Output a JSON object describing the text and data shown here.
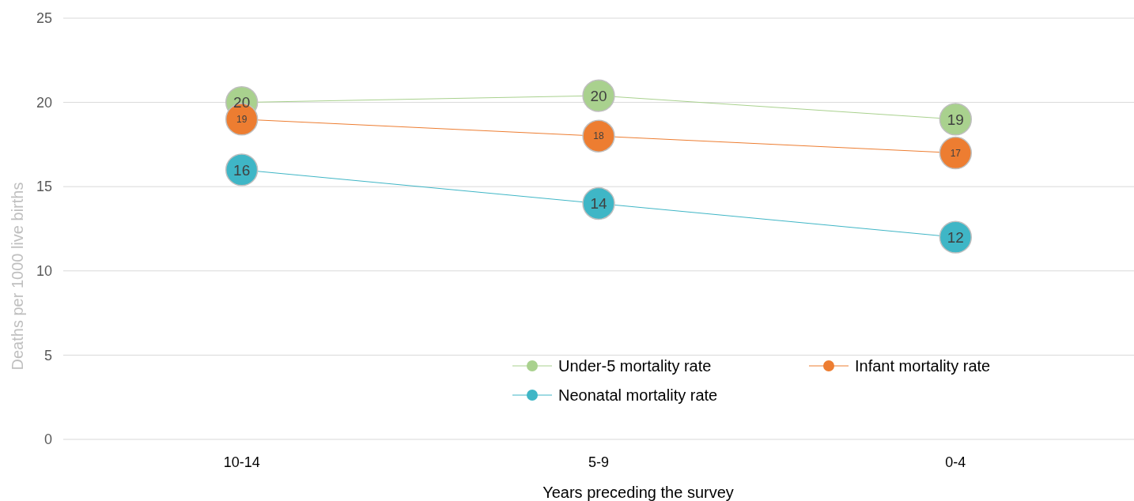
{
  "chart_data": {
    "type": "line",
    "xlabel": "Years preceding the survey",
    "ylabel": "Deaths per 1000 live births",
    "categories": [
      "10-14",
      "5-9",
      "0-4"
    ],
    "series": [
      {
        "name": "Under-5 mortality rate",
        "color": "#a9d18e",
        "values": [
          20,
          20.4,
          19
        ],
        "value_labels": [
          "20",
          "20",
          "19"
        ]
      },
      {
        "name": "Infant mortality rate",
        "color": "#ed7d31",
        "values": [
          19,
          18,
          17
        ],
        "value_labels": [
          "19",
          "18",
          "17"
        ]
      },
      {
        "name": "Neonatal mortality rate",
        "color": "#3fb6c6",
        "values": [
          16,
          14,
          12
        ],
        "value_labels": [
          "16",
          "14",
          "12"
        ]
      }
    ],
    "ylim": [
      0,
      25
    ],
    "yticks": [
      0,
      5,
      10,
      15,
      20,
      25
    ],
    "grid": "y",
    "legend": "bottom",
    "marker": "circle",
    "line_style": "solid"
  }
}
